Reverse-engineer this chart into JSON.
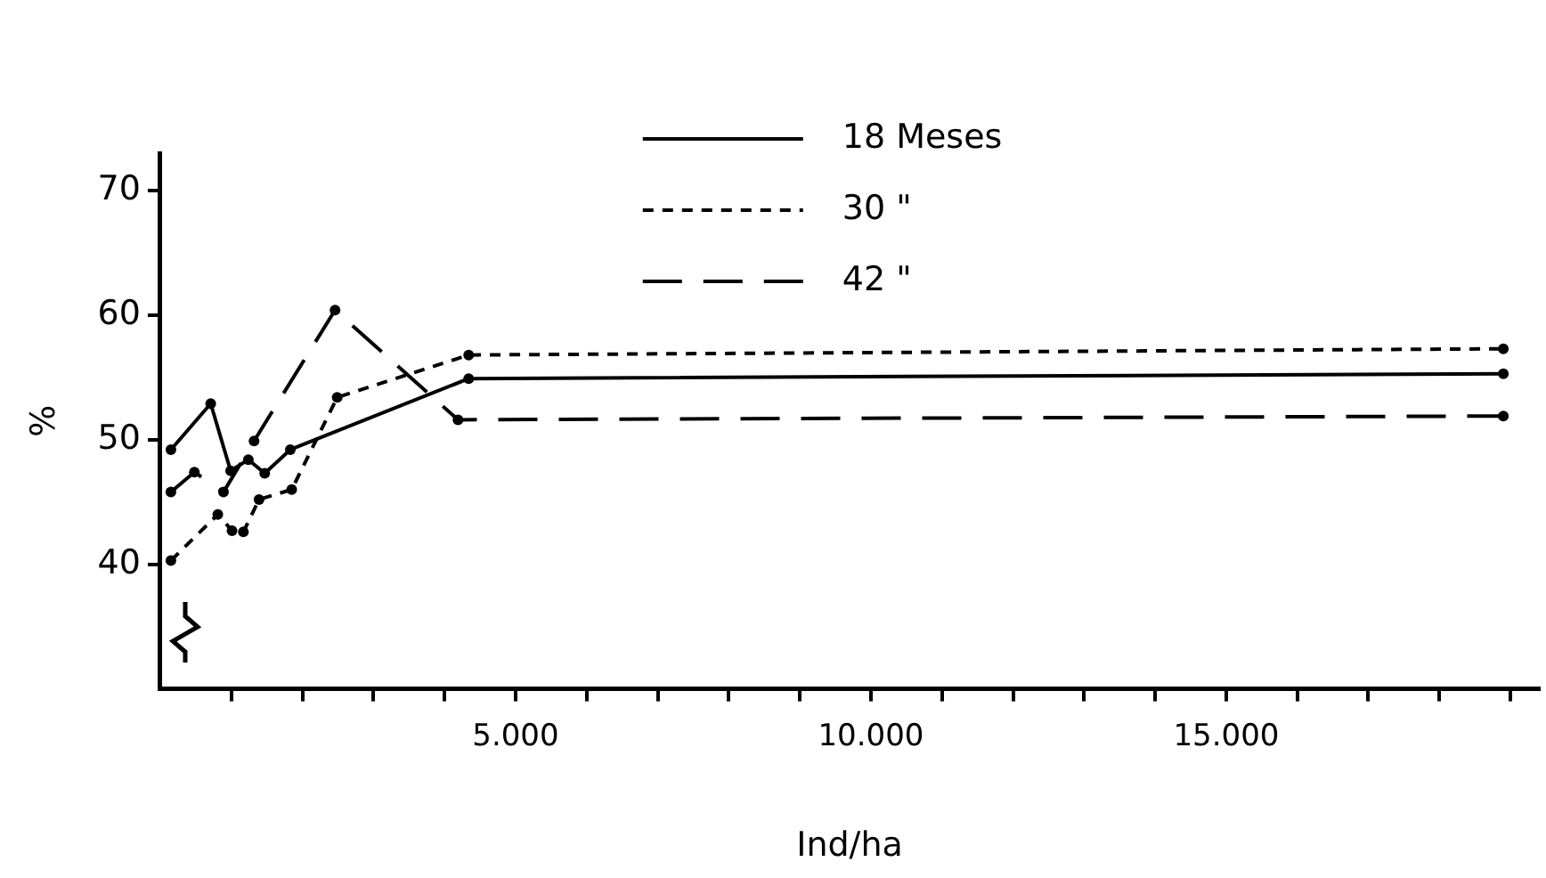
{
  "chart_data": {
    "type": "line",
    "xlabel": "Ind/ha",
    "ylabel": "%",
    "xlim": [
      0,
      19400
    ],
    "ylim": [
      30,
      73
    ],
    "xticks": [
      {
        "value": 1000,
        "label": null
      },
      {
        "value": 2000,
        "label": null
      },
      {
        "value": 3000,
        "label": null
      },
      {
        "value": 4000,
        "label": null
      },
      {
        "value": 5000,
        "label": "5.000"
      },
      {
        "value": 6000,
        "label": null
      },
      {
        "value": 7000,
        "label": null
      },
      {
        "value": 8000,
        "label": null
      },
      {
        "value": 9000,
        "label": null
      },
      {
        "value": 10000,
        "label": "10.000"
      },
      {
        "value": 11000,
        "label": null
      },
      {
        "value": 12000,
        "label": null
      },
      {
        "value": 13000,
        "label": null
      },
      {
        "value": 14000,
        "label": null
      },
      {
        "value": 15000,
        "label": "15.000"
      },
      {
        "value": 16000,
        "label": null
      },
      {
        "value": 17000,
        "label": null
      },
      {
        "value": 18000,
        "label": null
      },
      {
        "value": 19000,
        "label": null
      }
    ],
    "yticks": [
      40,
      50,
      60,
      70
    ],
    "grid": false,
    "legend": "top",
    "marker": "circle",
    "series": [
      {
        "name": "18 Meses",
        "color": "#000000",
        "line_style": "solid",
        "x": [
          150,
          710,
          990,
          1240,
          1470,
          1830,
          4340,
          18900
        ],
        "values": [
          49.2,
          52.9,
          47.5,
          48.4,
          47.3,
          49.2,
          54.9,
          55.3
        ]
      },
      {
        "name": "30 \"",
        "color": "#000000",
        "line_style": "dotted",
        "x": [
          150,
          810,
          1010,
          1170,
          1390,
          1850,
          2490,
          4340,
          18900
        ],
        "values": [
          40.3,
          44.0,
          42.7,
          42.6,
          45.2,
          46.0,
          53.4,
          56.8,
          57.3
        ]
      },
      {
        "name": "42 \"",
        "color": "#000000",
        "line_style": "dashed",
        "x": [
          150,
          480,
          890,
          1320,
          2460,
          4190,
          18900
        ],
        "values": [
          45.8,
          47.4,
          45.8,
          49.9,
          60.4,
          51.6,
          51.9
        ]
      }
    ]
  }
}
